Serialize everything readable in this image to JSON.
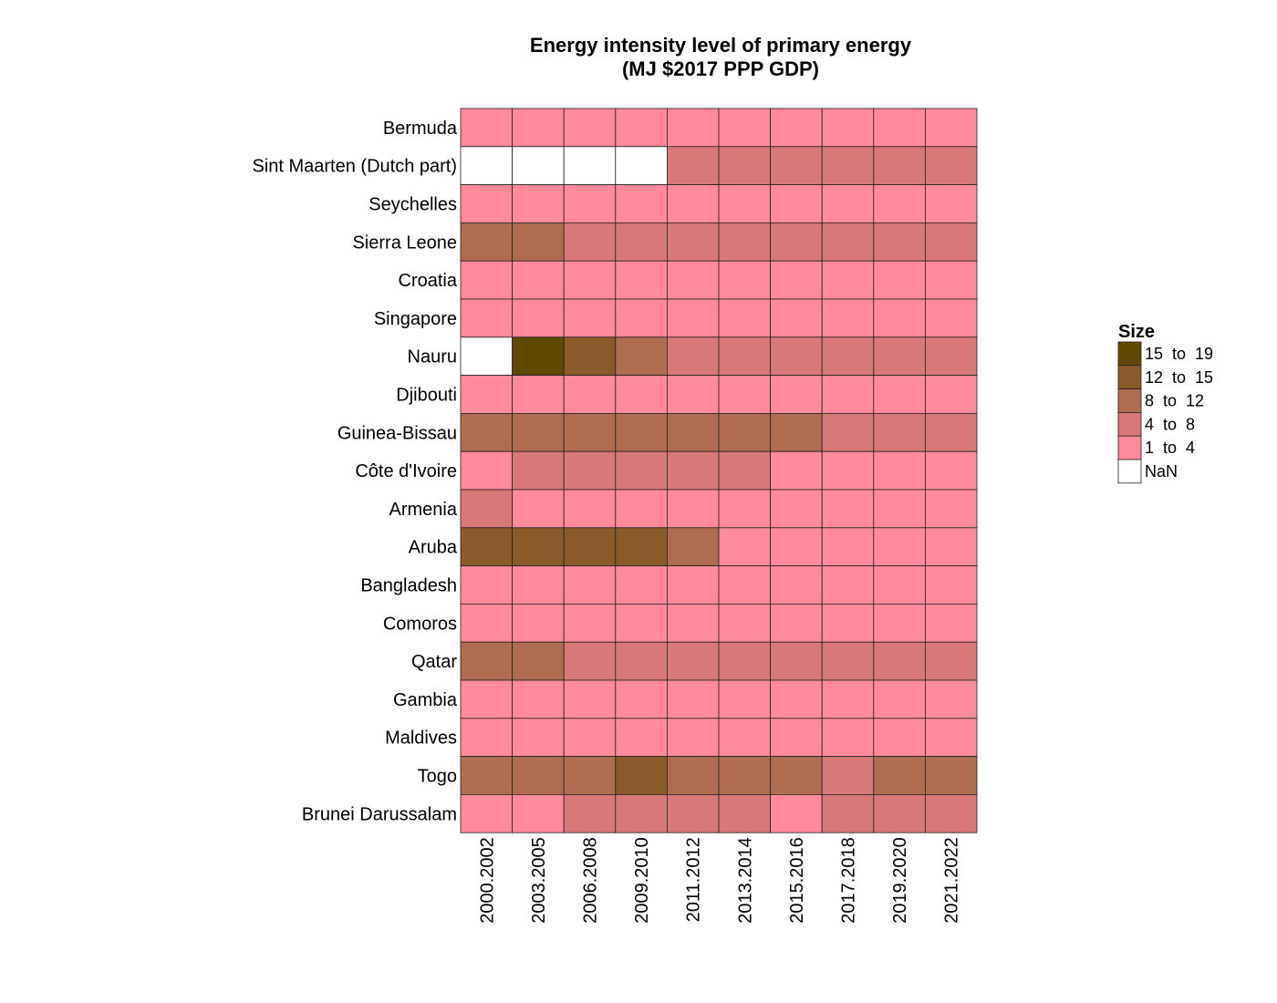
{
  "chart_data": {
    "type": "heatmap",
    "title": [
      "Energy intensity level of primary energy",
      "(MJ $2017 PPP GDP)"
    ],
    "columns": [
      "2000.2002",
      "2003.2005",
      "2006.2008",
      "2009.2010",
      "2011.2012",
      "2013.2014",
      "2015.2016",
      "2017.2018",
      "2019.2020",
      "2021.2022"
    ],
    "rows": [
      "Bermuda",
      "Sint Maarten (Dutch part)",
      "Seychelles",
      "Sierra Leone",
      "Croatia",
      "Singapore",
      "Nauru",
      "Djibouti",
      "Guinea-Bissau",
      "Côte d'Ivoire",
      "Armenia",
      "Aruba",
      "Bangladesh",
      "Comoros",
      "Qatar",
      "Gambia",
      "Maldives",
      "Togo",
      "Brunei Darussalam"
    ],
    "legend": {
      "title": "Size",
      "position": "right",
      "bins": [
        {
          "label": "15  to  19",
          "color": "#5f4800"
        },
        {
          "label": "12  to  15",
          "color": "#8a5a28"
        },
        {
          "label": "8  to  12",
          "color": "#b06c50"
        },
        {
          "label": "4  to  8",
          "color": "#d97878"
        },
        {
          "label": "1  to  4",
          "color": "#ff8a9c"
        },
        {
          "label": "NaN",
          "color": "#ffffff"
        }
      ]
    },
    "bin_values": [
      [
        4,
        4,
        4,
        4,
        4,
        4,
        4,
        4,
        4,
        4
      ],
      [
        5,
        5,
        5,
        5,
        3,
        3,
        3,
        3,
        3,
        3
      ],
      [
        4,
        4,
        4,
        4,
        4,
        4,
        4,
        4,
        4,
        4
      ],
      [
        2,
        2,
        3,
        3,
        3,
        3,
        3,
        3,
        3,
        3
      ],
      [
        4,
        4,
        4,
        4,
        4,
        4,
        4,
        4,
        4,
        4
      ],
      [
        4,
        4,
        4,
        4,
        4,
        4,
        4,
        4,
        4,
        4
      ],
      [
        5,
        0,
        1,
        2,
        3,
        3,
        3,
        3,
        3,
        3
      ],
      [
        4,
        4,
        4,
        4,
        4,
        4,
        4,
        4,
        4,
        4
      ],
      [
        2,
        2,
        2,
        2,
        2,
        2,
        2,
        3,
        3,
        3
      ],
      [
        4,
        3,
        3,
        3,
        3,
        3,
        4,
        4,
        4,
        4
      ],
      [
        3,
        4,
        4,
        4,
        4,
        4,
        4,
        4,
        4,
        4
      ],
      [
        1,
        1,
        1,
        1,
        2,
        4,
        4,
        4,
        4,
        4
      ],
      [
        4,
        4,
        4,
        4,
        4,
        4,
        4,
        4,
        4,
        4
      ],
      [
        4,
        4,
        4,
        4,
        4,
        4,
        4,
        4,
        4,
        4
      ],
      [
        2,
        2,
        3,
        3,
        3,
        3,
        3,
        3,
        3,
        3
      ],
      [
        4,
        4,
        4,
        4,
        4,
        4,
        4,
        4,
        4,
        4
      ],
      [
        4,
        4,
        4,
        4,
        4,
        4,
        4,
        4,
        4,
        4
      ],
      [
        2,
        2,
        2,
        1,
        2,
        2,
        2,
        3,
        2,
        2
      ],
      [
        4,
        4,
        3,
        3,
        3,
        3,
        4,
        3,
        3,
        3
      ]
    ]
  }
}
